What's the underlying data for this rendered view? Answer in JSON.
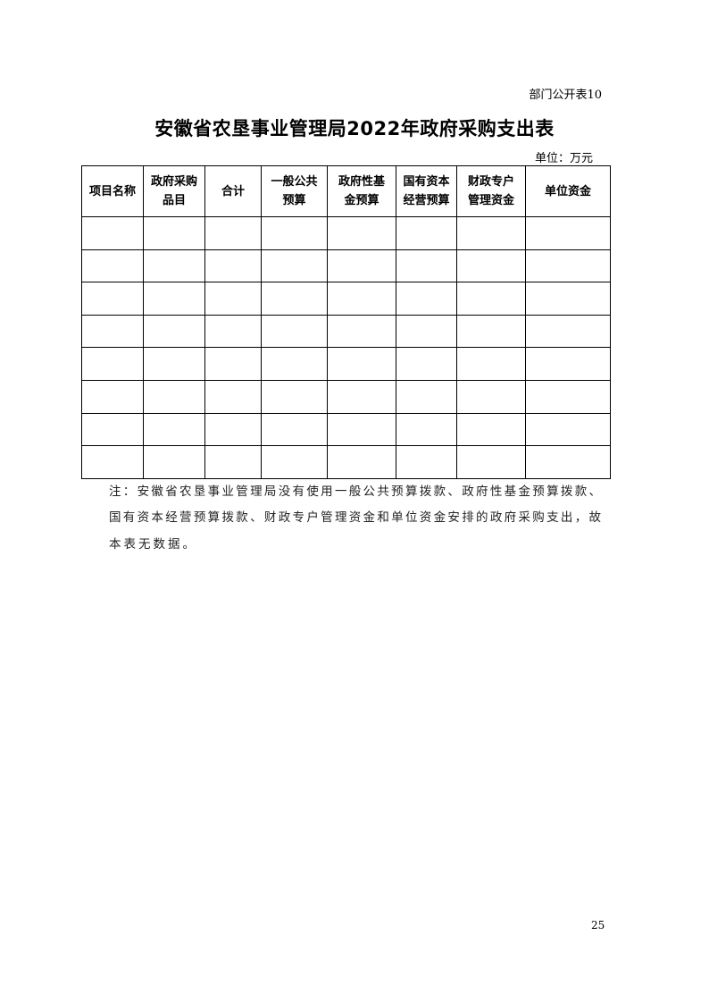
{
  "table_tag": "部门公开表10",
  "title": "安徽省农垦事业管理局2022年政府采购支出表",
  "unit": "单位：万元",
  "table": {
    "headers": [
      [
        "项目名称"
      ],
      [
        "政府采购",
        "品目"
      ],
      [
        "合计"
      ],
      [
        "一般公共",
        "预算"
      ],
      [
        "政府性基",
        "金预算"
      ],
      [
        "国有资本",
        "经营预算"
      ],
      [
        "财政专户",
        "管理资金"
      ],
      [
        "单位资金"
      ]
    ],
    "rows": [
      [
        "",
        "",
        "",
        "",
        "",
        "",
        "",
        ""
      ],
      [
        "",
        "",
        "",
        "",
        "",
        "",
        "",
        ""
      ],
      [
        "",
        "",
        "",
        "",
        "",
        "",
        "",
        ""
      ],
      [
        "",
        "",
        "",
        "",
        "",
        "",
        "",
        ""
      ],
      [
        "",
        "",
        "",
        "",
        "",
        "",
        "",
        ""
      ],
      [
        "",
        "",
        "",
        "",
        "",
        "",
        "",
        ""
      ],
      [
        "",
        "",
        "",
        "",
        "",
        "",
        "",
        ""
      ],
      [
        "",
        "",
        "",
        "",
        "",
        "",
        "",
        ""
      ]
    ]
  },
  "note_lines": [
    "注：安徽省农垦事业管理局没有使用一般公共预算拨款、政府性基金预算拨款、",
    "国有资本经营预算拨款、财政专户管理资金和单位资金安排的政府采购支出，故",
    "本表无数据。"
  ],
  "page_number": "25"
}
